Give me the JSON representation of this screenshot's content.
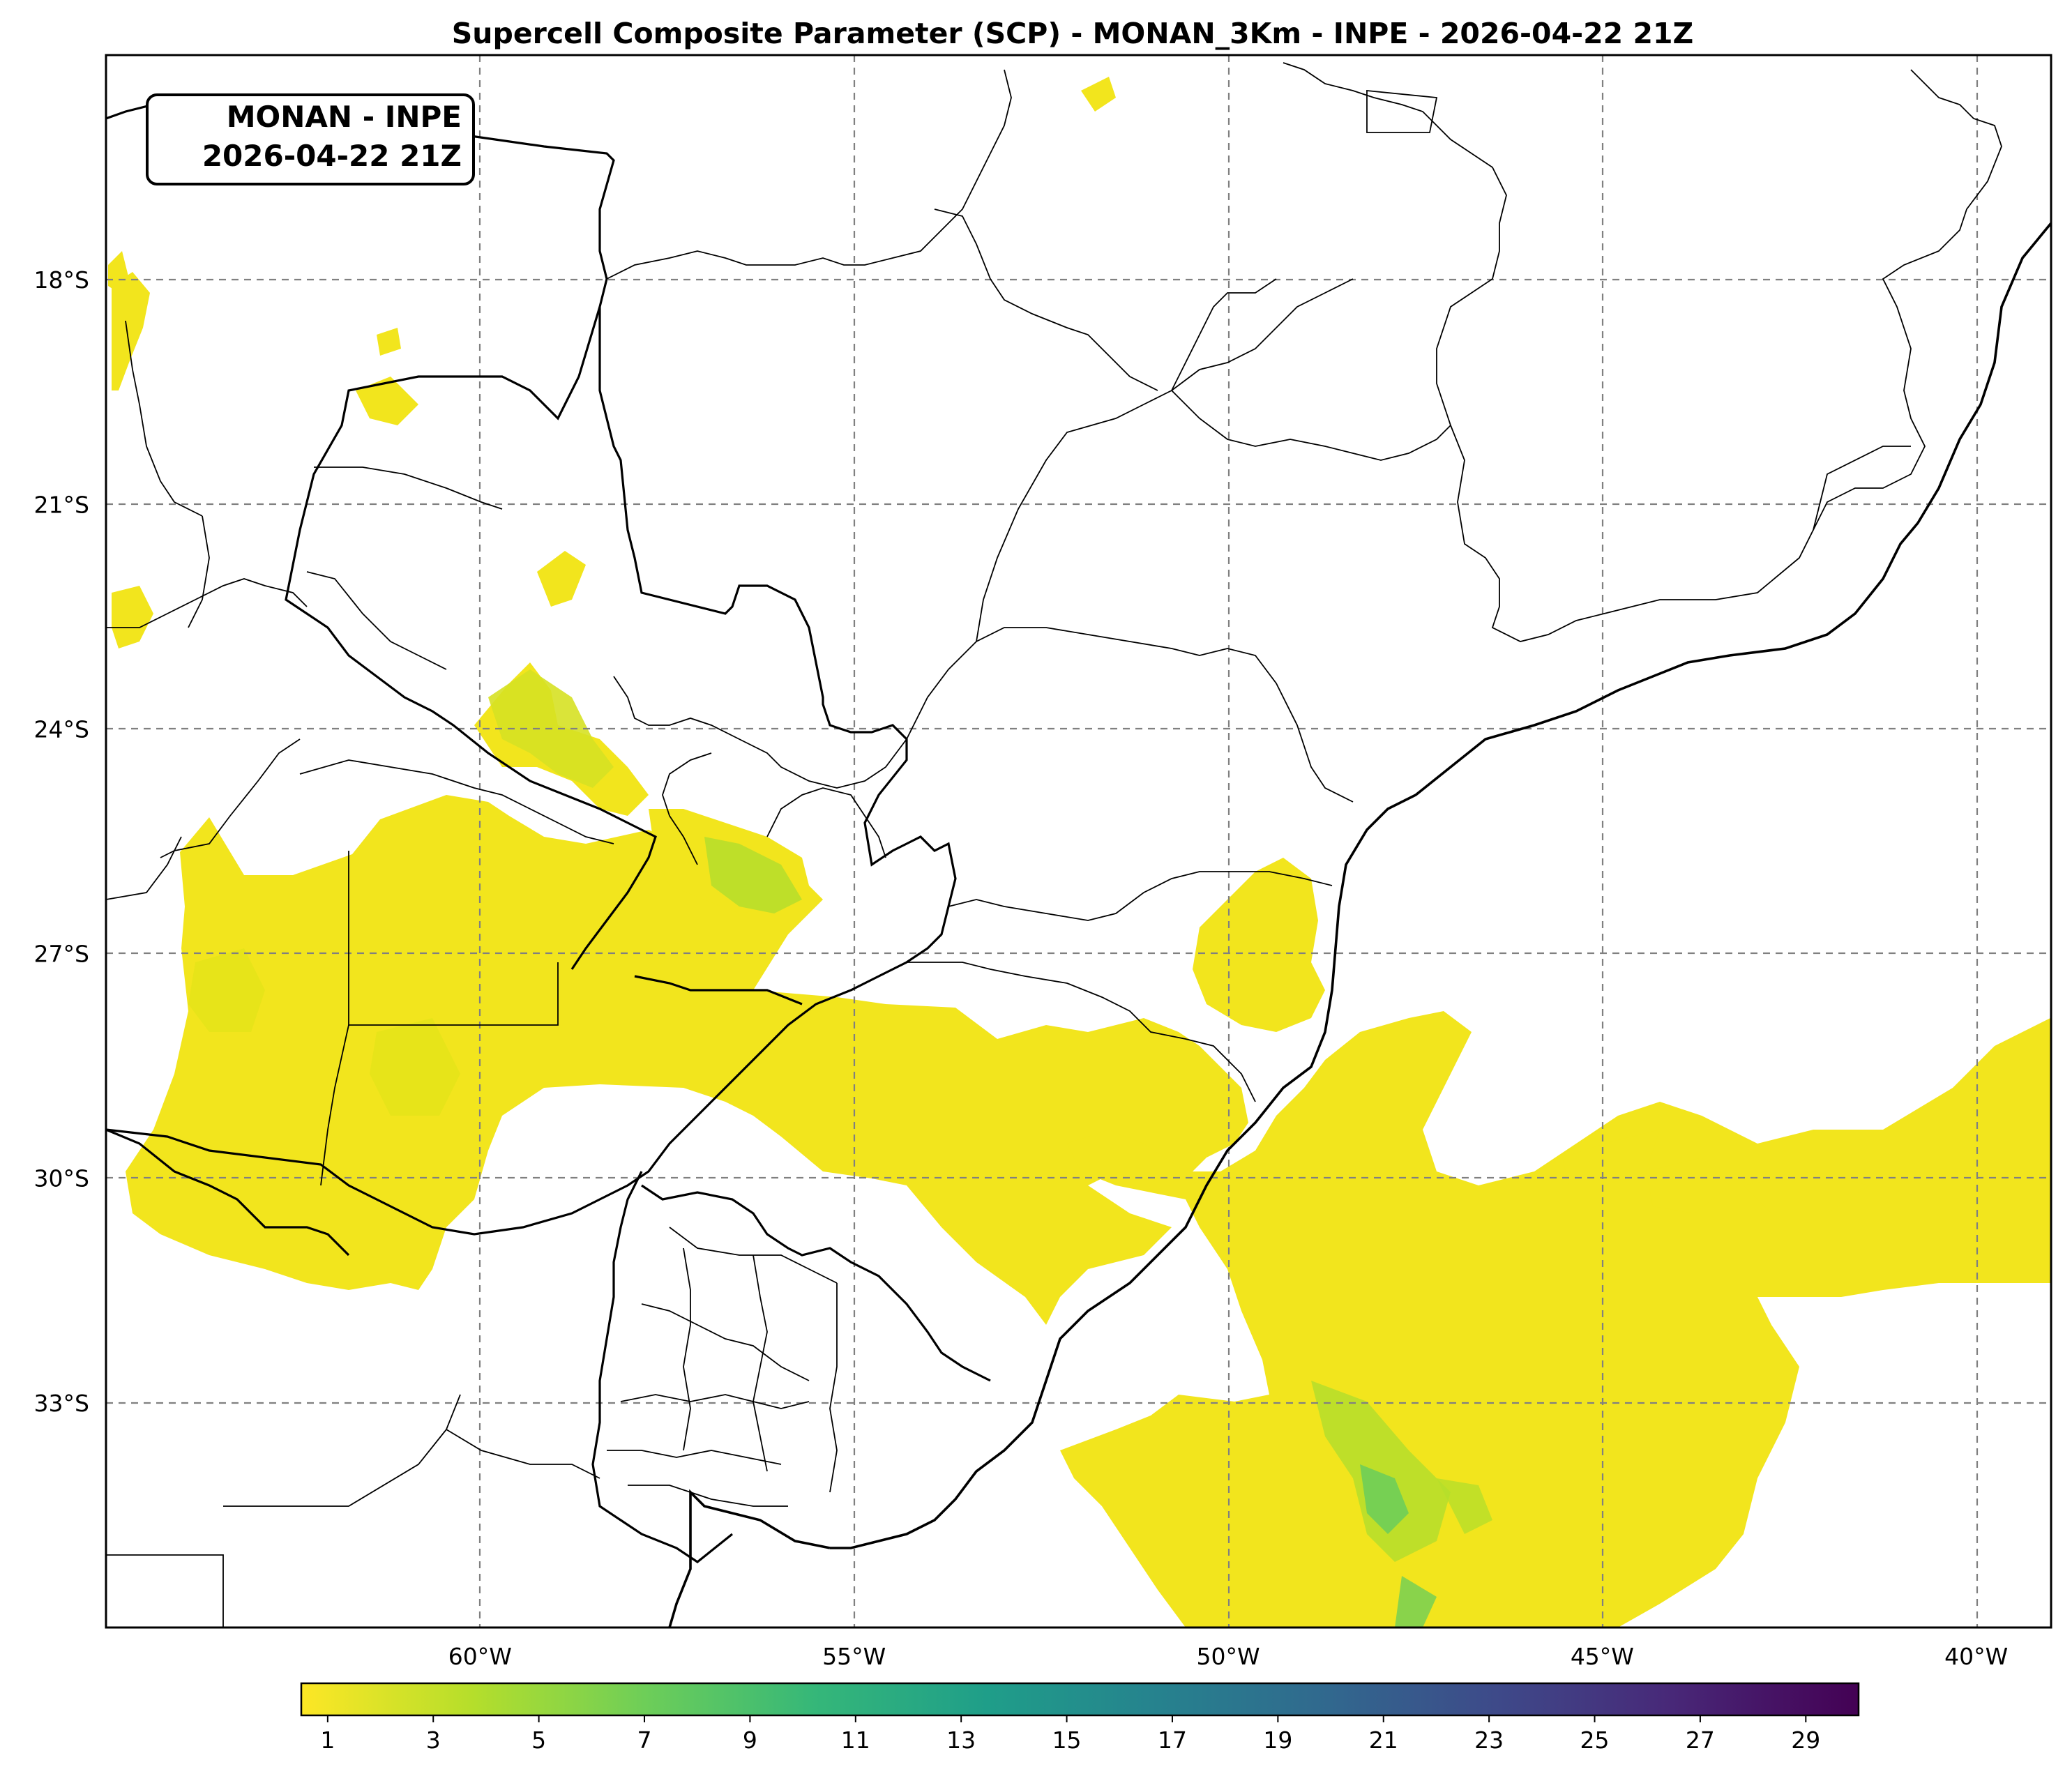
{
  "title": "Supercell Composite Parameter (SCP) - MONAN_3Km - INPE - 2026-04-22 21Z",
  "stamp": {
    "line1": "MONAN - INPE",
    "line2": "2026-04-22 21Z"
  },
  "map": {
    "lon_range": [
      -65,
      -39
    ],
    "lat_range": [
      -36,
      -15
    ],
    "lon_ticks": [
      {
        "value": -60,
        "label": "60°W"
      },
      {
        "value": -55,
        "label": "55°W"
      },
      {
        "value": -50,
        "label": "50°W"
      },
      {
        "value": -45,
        "label": "45°W"
      },
      {
        "value": -40,
        "label": "40°W"
      }
    ],
    "lat_ticks": [
      {
        "value": -18,
        "label": "18°S"
      },
      {
        "value": -21,
        "label": "21°S"
      },
      {
        "value": -24,
        "label": "24°S"
      },
      {
        "value": -27,
        "label": "27°S"
      },
      {
        "value": -30,
        "label": "30°S"
      },
      {
        "value": -33,
        "label": "33°S"
      }
    ],
    "gridlines": true
  },
  "colorbar": {
    "colormap": "viridis_r",
    "range": [
      0.5,
      30
    ],
    "ticks": [
      "1",
      "3",
      "5",
      "7",
      "9",
      "11",
      "13",
      "15",
      "17",
      "19",
      "21",
      "23",
      "25",
      "27",
      "29"
    ],
    "colors": [
      "#fde725",
      "#b5de2b",
      "#6ece58",
      "#35b779",
      "#1f9e89",
      "#26828e",
      "#31688e",
      "#3e4989",
      "#482878",
      "#440154"
    ]
  }
}
